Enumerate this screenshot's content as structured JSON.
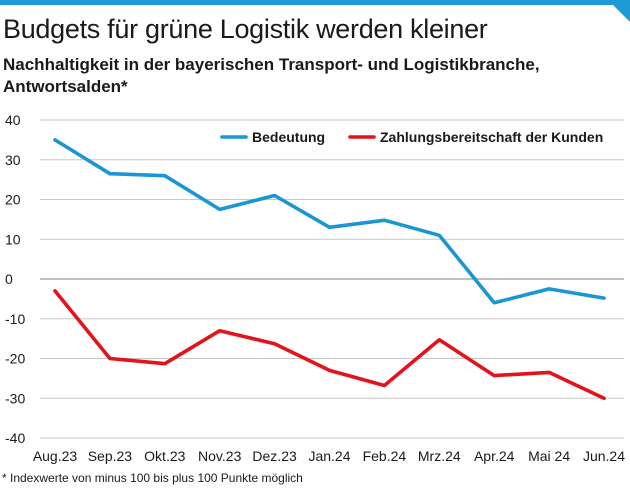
{
  "header": {
    "title": "Budgets für grüne Logistik werden kleiner",
    "subtitle": "Nachhaltigkeit in der bayerischen Transport- und Logistikbranche, Antwortsalden*"
  },
  "footnote": "* Indexwerte von minus 100 bis plus 100 Punkte möglich",
  "colors": {
    "accent": "#1e9ad6",
    "series_1": "#1a96d4",
    "series_2": "#e3131b"
  },
  "chart_data": {
    "type": "line",
    "title": "Budgets für grüne Logistik werden kleiner",
    "subtitle": "Nachhaltigkeit in der bayerischen Transport- und Logistikbranche, Antwortsalden*",
    "categories": [
      "Aug.23",
      "Sep.23",
      "Okt.23",
      "Nov.23",
      "Dez.23",
      "Jan.24",
      "Feb.24",
      "Mrz.24",
      "Apr.24",
      "Mai 24",
      "Jun.24"
    ],
    "series": [
      {
        "name": "Bedeutung",
        "color": "#1a96d4",
        "values": [
          35,
          26.5,
          26,
          17.5,
          21,
          13,
          14.8,
          11,
          -6,
          -2.5,
          -4.8
        ]
      },
      {
        "name": "Zahlungsbereitschaft der Kunden",
        "color": "#e3131b",
        "values": [
          -3,
          -20,
          -21.3,
          -13,
          -16.3,
          -23,
          -26.8,
          -15.3,
          -24.3,
          -23.5,
          -30
        ]
      }
    ],
    "yticks": [
      40,
      30,
      20,
      10,
      0,
      -10,
      -20,
      -30,
      -40
    ],
    "ytick_labels": [
      "40",
      "30",
      "20",
      "10",
      "0",
      "-10",
      "-20",
      "-30",
      "-40"
    ],
    "ylim": [
      -40,
      40
    ],
    "grid": true,
    "legend_position": "top-right"
  }
}
